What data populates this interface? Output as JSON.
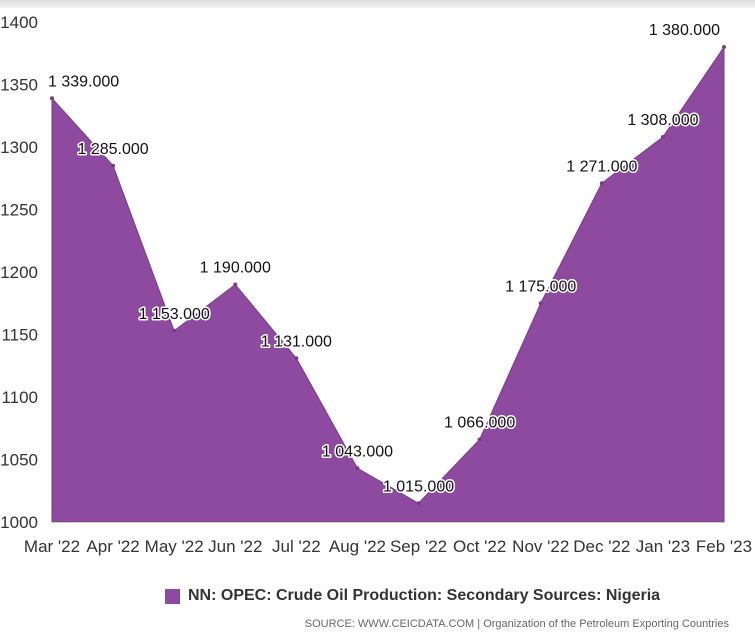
{
  "chart_data": {
    "type": "area",
    "categories": [
      "Mar '22",
      "Apr '22",
      "May '22",
      "Jun '22",
      "Jul '22",
      "Aug '22",
      "Sep '22",
      "Oct '22",
      "Nov '22",
      "Dec '22",
      "Jan '23",
      "Feb '23"
    ],
    "values": [
      1339,
      1285,
      1153,
      1190,
      1131,
      1043,
      1015,
      1066,
      1175,
      1271,
      1308,
      1380
    ],
    "data_labels": [
      "1 339.000",
      "1 285.000",
      "1 153.000",
      "1 190.000",
      "1 131.000",
      "1 043.000",
      "1 015.000",
      "1 066.000",
      "1 175.000",
      "1 271.000",
      "1 308.000",
      "1 380.000"
    ],
    "yticks": [
      1000,
      1050,
      1100,
      1150,
      1200,
      1250,
      1300,
      1350,
      1400
    ],
    "ylim": [
      1000,
      1400
    ],
    "series_name": "NN: OPEC: Crude Oil Production: Secondary Sources: Nigeria",
    "series_color": "#8e4a9e",
    "legend_position": "bottom-center",
    "grid": false
  },
  "source_text": "SOURCE: WWW.CEICDATA.COM | Organization of the Petroleum Exporting Countries"
}
